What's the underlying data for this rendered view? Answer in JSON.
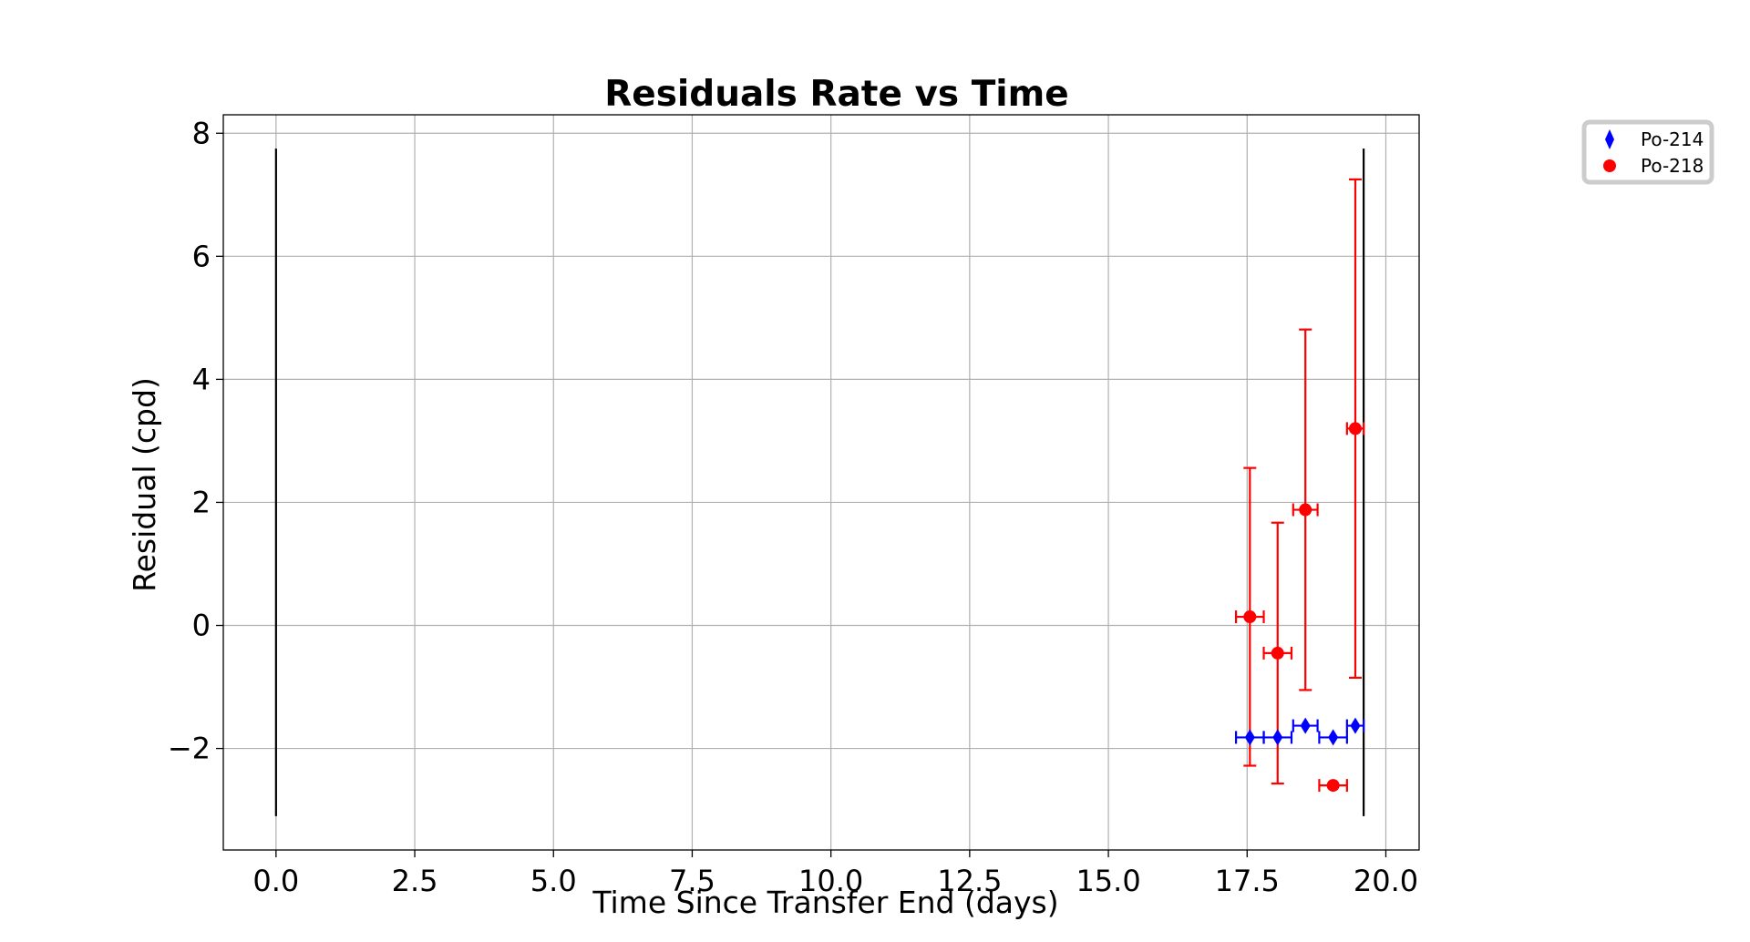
{
  "chart_data": {
    "type": "scatter",
    "title": "Residuals Rate vs Time",
    "xlabel": "Time Since Transfer End (days)",
    "ylabel": "Residual (cpd)",
    "xlim": [
      -0.95,
      20.6
    ],
    "ylim": [
      -3.65,
      8.3
    ],
    "xticks": [
      0.0,
      2.5,
      5.0,
      7.5,
      10.0,
      12.5,
      15.0,
      17.5,
      20.0
    ],
    "xtick_labels": [
      "0.0",
      "2.5",
      "5.0",
      "7.5",
      "10.0",
      "12.5",
      "15.0",
      "17.5",
      "20.0"
    ],
    "yticks": [
      -2,
      0,
      2,
      4,
      6,
      8
    ],
    "ytick_labels": [
      "−2",
      "0",
      "2",
      "4",
      "6",
      "8"
    ],
    "grid": true,
    "legend_position": "outside top-right",
    "vlines": [
      {
        "x": 0.0,
        "ymin": -3.1,
        "ymax": 7.75,
        "color": "#000000"
      },
      {
        "x": 19.6,
        "ymin": -3.1,
        "ymax": 7.75,
        "color": "#000000"
      }
    ],
    "series": [
      {
        "name": "Po-214",
        "color": "#0000ff",
        "marker": "diamond",
        "points": [
          {
            "x": 17.55,
            "y": -1.82,
            "xerr": 0.25,
            "yerr": 0.0
          },
          {
            "x": 18.05,
            "y": -1.82,
            "xerr": 0.25,
            "yerr": 0.0
          },
          {
            "x": 18.55,
            "y": -1.63,
            "xerr": 0.22,
            "yerr": 0.0
          },
          {
            "x": 19.05,
            "y": -1.82,
            "xerr": 0.25,
            "yerr": 0.0
          },
          {
            "x": 19.45,
            "y": -1.63,
            "xerr": 0.15,
            "yerr": 0.0
          }
        ]
      },
      {
        "name": "Po-218",
        "color": "#ff0000",
        "marker": "circle",
        "points": [
          {
            "x": 17.55,
            "y": 0.14,
            "xerr": 0.25,
            "yerr_low": 2.42,
            "yerr_high": 2.42
          },
          {
            "x": 18.05,
            "y": -0.45,
            "xerr": 0.25,
            "yerr_low": 2.12,
            "yerr_high": 2.12
          },
          {
            "x": 18.55,
            "y": 1.88,
            "xerr": 0.22,
            "yerr_low": 2.93,
            "yerr_high": 2.93
          },
          {
            "x": 19.05,
            "y": -2.6,
            "xerr": 0.25,
            "yerr_low": 0.0,
            "yerr_high": 0.0
          },
          {
            "x": 19.45,
            "y": 3.2,
            "xerr": 0.15,
            "yerr_low": 4.05,
            "yerr_high": 4.05
          }
        ]
      }
    ]
  }
}
